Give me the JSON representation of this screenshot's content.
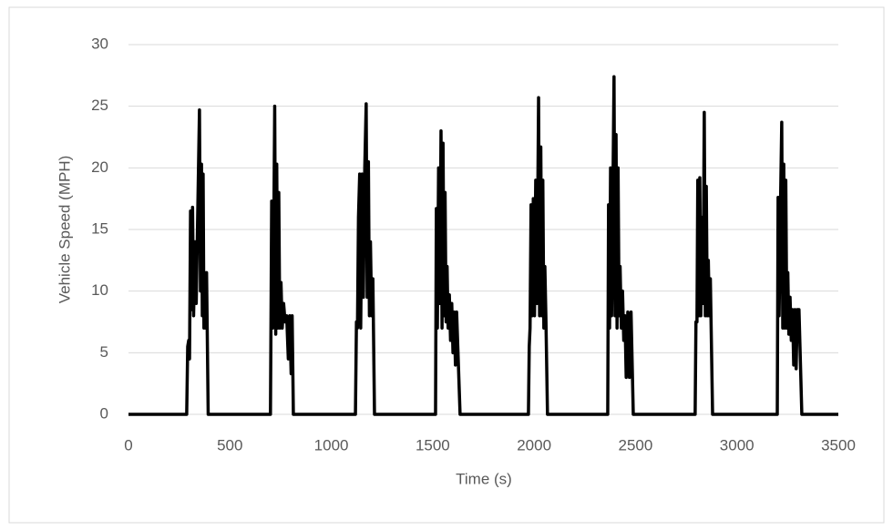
{
  "chart_data": {
    "type": "line",
    "xlabel": "Time (s)",
    "ylabel": "Vehicle Speed (MPH)",
    "xlim": [
      0,
      3500
    ],
    "xticks": [
      0,
      500,
      1000,
      1500,
      2000,
      2500,
      3000,
      3500
    ],
    "ylim": [
      0,
      30
    ],
    "yticks": [
      0,
      5,
      10,
      15,
      20,
      25,
      30
    ],
    "grid": true,
    "series": [
      {
        "color": "#000000",
        "x": [
          0,
          287,
          292,
          297,
          301,
          306,
          311,
          316,
          321,
          328,
          334,
          350,
          355,
          360,
          364,
          368,
          372,
          376,
          381,
          385,
          393,
          700,
          706,
          711,
          716,
          721,
          726,
          731,
          736,
          741,
          746,
          752,
          758,
          765,
          772,
          780,
          788,
          795,
          802,
          807,
          813,
          1119,
          1124,
          1129,
          1134,
          1140,
          1145,
          1152,
          1158,
          1165,
          1172,
          1177,
          1183,
          1188,
          1193,
          1199,
          1205,
          1213,
          1514,
          1518,
          1523,
          1529,
          1535,
          1541,
          1546,
          1551,
          1556,
          1561,
          1566,
          1571,
          1576,
          1582,
          1588,
          1594,
          1600,
          1606,
          1612,
          1618,
          1635,
          1972,
          1976,
          1980,
          1985,
          1990,
          1996,
          2002,
          2008,
          2014,
          2022,
          2027,
          2033,
          2038,
          2043,
          2048,
          2053,
          2058,
          2066,
          2363,
          2367,
          2372,
          2377,
          2382,
          2388,
          2394,
          2399,
          2404,
          2409,
          2414,
          2419,
          2424,
          2430,
          2436,
          2442,
          2448,
          2454,
          2462,
          2470,
          2478,
          2489,
          2794,
          2798,
          2803,
          2807,
          2812,
          2817,
          2822,
          2828,
          2833,
          2839,
          2844,
          2849,
          2854,
          2859,
          2864,
          2869,
          2880,
          3199,
          3203,
          3208,
          3214,
          3221,
          3226,
          3231,
          3236,
          3241,
          3246,
          3251,
          3256,
          3262,
          3268,
          3274,
          3280,
          3286,
          3292,
          3298,
          3306,
          3320,
          3500
        ],
        "values": [
          0,
          0,
          5.5,
          6,
          4.5,
          16.5,
          8.5,
          16.8,
          8,
          14,
          9,
          24.7,
          10,
          20.3,
          8,
          19.5,
          7,
          11.5,
          7,
          11.5,
          0,
          0,
          17.3,
          7,
          14,
          25,
          6.5,
          20.3,
          7,
          18,
          7,
          10.7,
          7,
          9,
          7.5,
          8,
          4.5,
          8,
          3.3,
          8,
          0,
          0,
          7.5,
          7,
          16,
          19.5,
          7,
          19.5,
          9.5,
          20,
          25.2,
          9.5,
          20.5,
          8,
          14,
          8,
          11,
          0,
          0,
          16.7,
          7,
          20,
          9,
          23,
          7,
          22,
          8,
          18,
          7.5,
          12,
          7,
          9.7,
          6,
          9,
          5,
          8.3,
          4,
          8.3,
          0,
          0,
          5.5,
          7,
          17,
          8,
          17.5,
          8,
          19,
          9,
          25.7,
          8,
          21.7,
          8,
          19,
          7,
          12,
          8,
          0,
          0,
          17,
          7,
          20,
          8,
          17,
          27.4,
          8,
          22.7,
          7,
          20,
          8,
          12,
          7,
          10,
          6,
          8,
          3,
          8.3,
          3,
          8.3,
          0,
          0,
          7.5,
          7.5,
          19,
          8,
          19.2,
          8,
          16,
          9,
          24.5,
          8,
          18.5,
          8,
          12.5,
          8,
          11,
          0,
          0,
          17.6,
          8,
          16,
          23.7,
          7,
          20.3,
          7,
          19,
          7,
          11.5,
          6.5,
          9.5,
          6,
          8.5,
          4,
          8.5,
          3.7,
          8.5,
          8.5,
          0,
          0
        ]
      }
    ]
  }
}
